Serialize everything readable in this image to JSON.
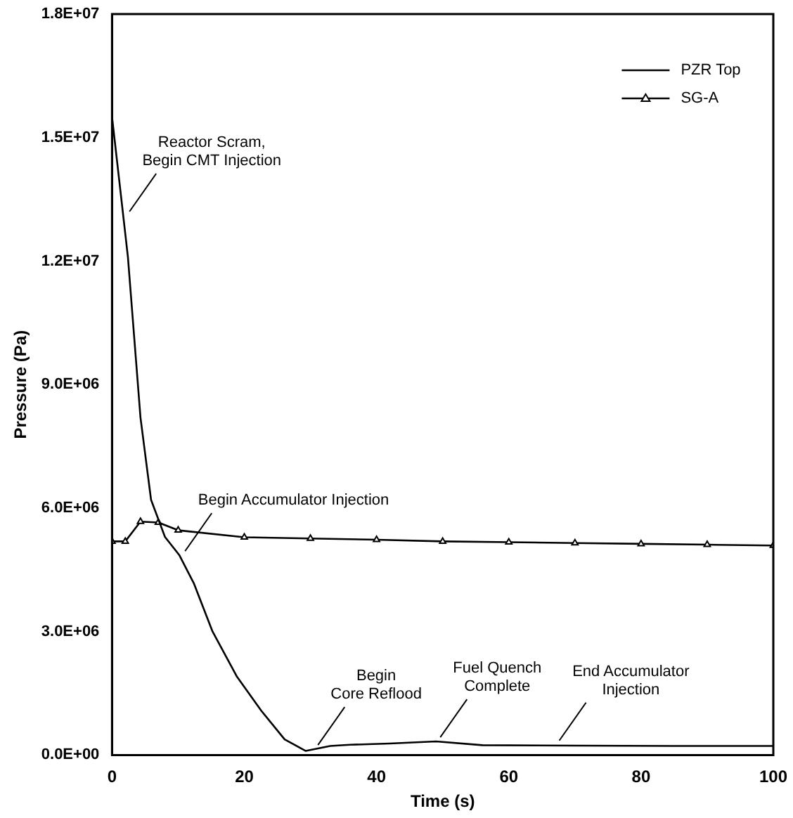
{
  "chart_data": {
    "type": "line",
    "xlabel": "Time (s)",
    "ylabel": "Pressure (Pa)",
    "xlim": [
      0,
      100
    ],
    "xticks": [
      0,
      20,
      40,
      60,
      80,
      100
    ],
    "ylim": [
      0,
      18000000
    ],
    "yticks": [
      {
        "value": 0,
        "label": "0.0E+00"
      },
      {
        "value": 3000000,
        "label": "3.0E+06"
      },
      {
        "value": 6000000,
        "label": "6.0E+06"
      },
      {
        "value": 9000000,
        "label": "9.0E+06"
      },
      {
        "value": 12000000,
        "label": "1.2E+07"
      },
      {
        "value": 15000000,
        "label": "1.5E+07"
      },
      {
        "value": 18000000,
        "label": "1.8E+07"
      }
    ],
    "grid": false,
    "legend": "top right",
    "line_style": "solid",
    "series": [
      {
        "name": "PZR Top",
        "color": "#000000",
        "marker": "none",
        "x": [
          0,
          2.4,
          4.3,
          5.9,
          8,
          10.2,
          12.4,
          15.2,
          18.9,
          22.6,
          26.1,
          29.3,
          33,
          36,
          42,
          49,
          56,
          70,
          85,
          100
        ],
        "values": [
          15500000,
          12100000,
          8200000,
          6200000,
          5300000,
          4850000,
          4160000,
          3000000,
          1900000,
          1070000,
          380000,
          100000,
          220000,
          250000,
          280000,
          330000,
          240000,
          230000,
          220000,
          220000
        ]
      },
      {
        "name": "SG-A",
        "color": "#000000",
        "marker": "triangle",
        "x": [
          0,
          2,
          4.3,
          7,
          10,
          20,
          30,
          40,
          50,
          60,
          70,
          80,
          90,
          100
        ],
        "values": [
          5190000,
          5190000,
          5670000,
          5650000,
          5460000,
          5290000,
          5260000,
          5230000,
          5190000,
          5170000,
          5150000,
          5130000,
          5110000,
          5090000
        ]
      }
    ],
    "annotations": [
      {
        "text": "Reactor Scram,\nBegin CMT Injection",
        "x": 2,
        "y": 13100000
      },
      {
        "text": "Begin Accumulator Injection",
        "x": 10.4,
        "y": 4850000
      },
      {
        "text": "Begin\nCore Reflood",
        "x": 30.5,
        "y": 140000
      },
      {
        "text": "Fuel Quench\nComplete",
        "x": 49,
        "y": 330000
      },
      {
        "text": "End Accumulator\nInjection",
        "x": 67,
        "y": 250000
      }
    ]
  }
}
